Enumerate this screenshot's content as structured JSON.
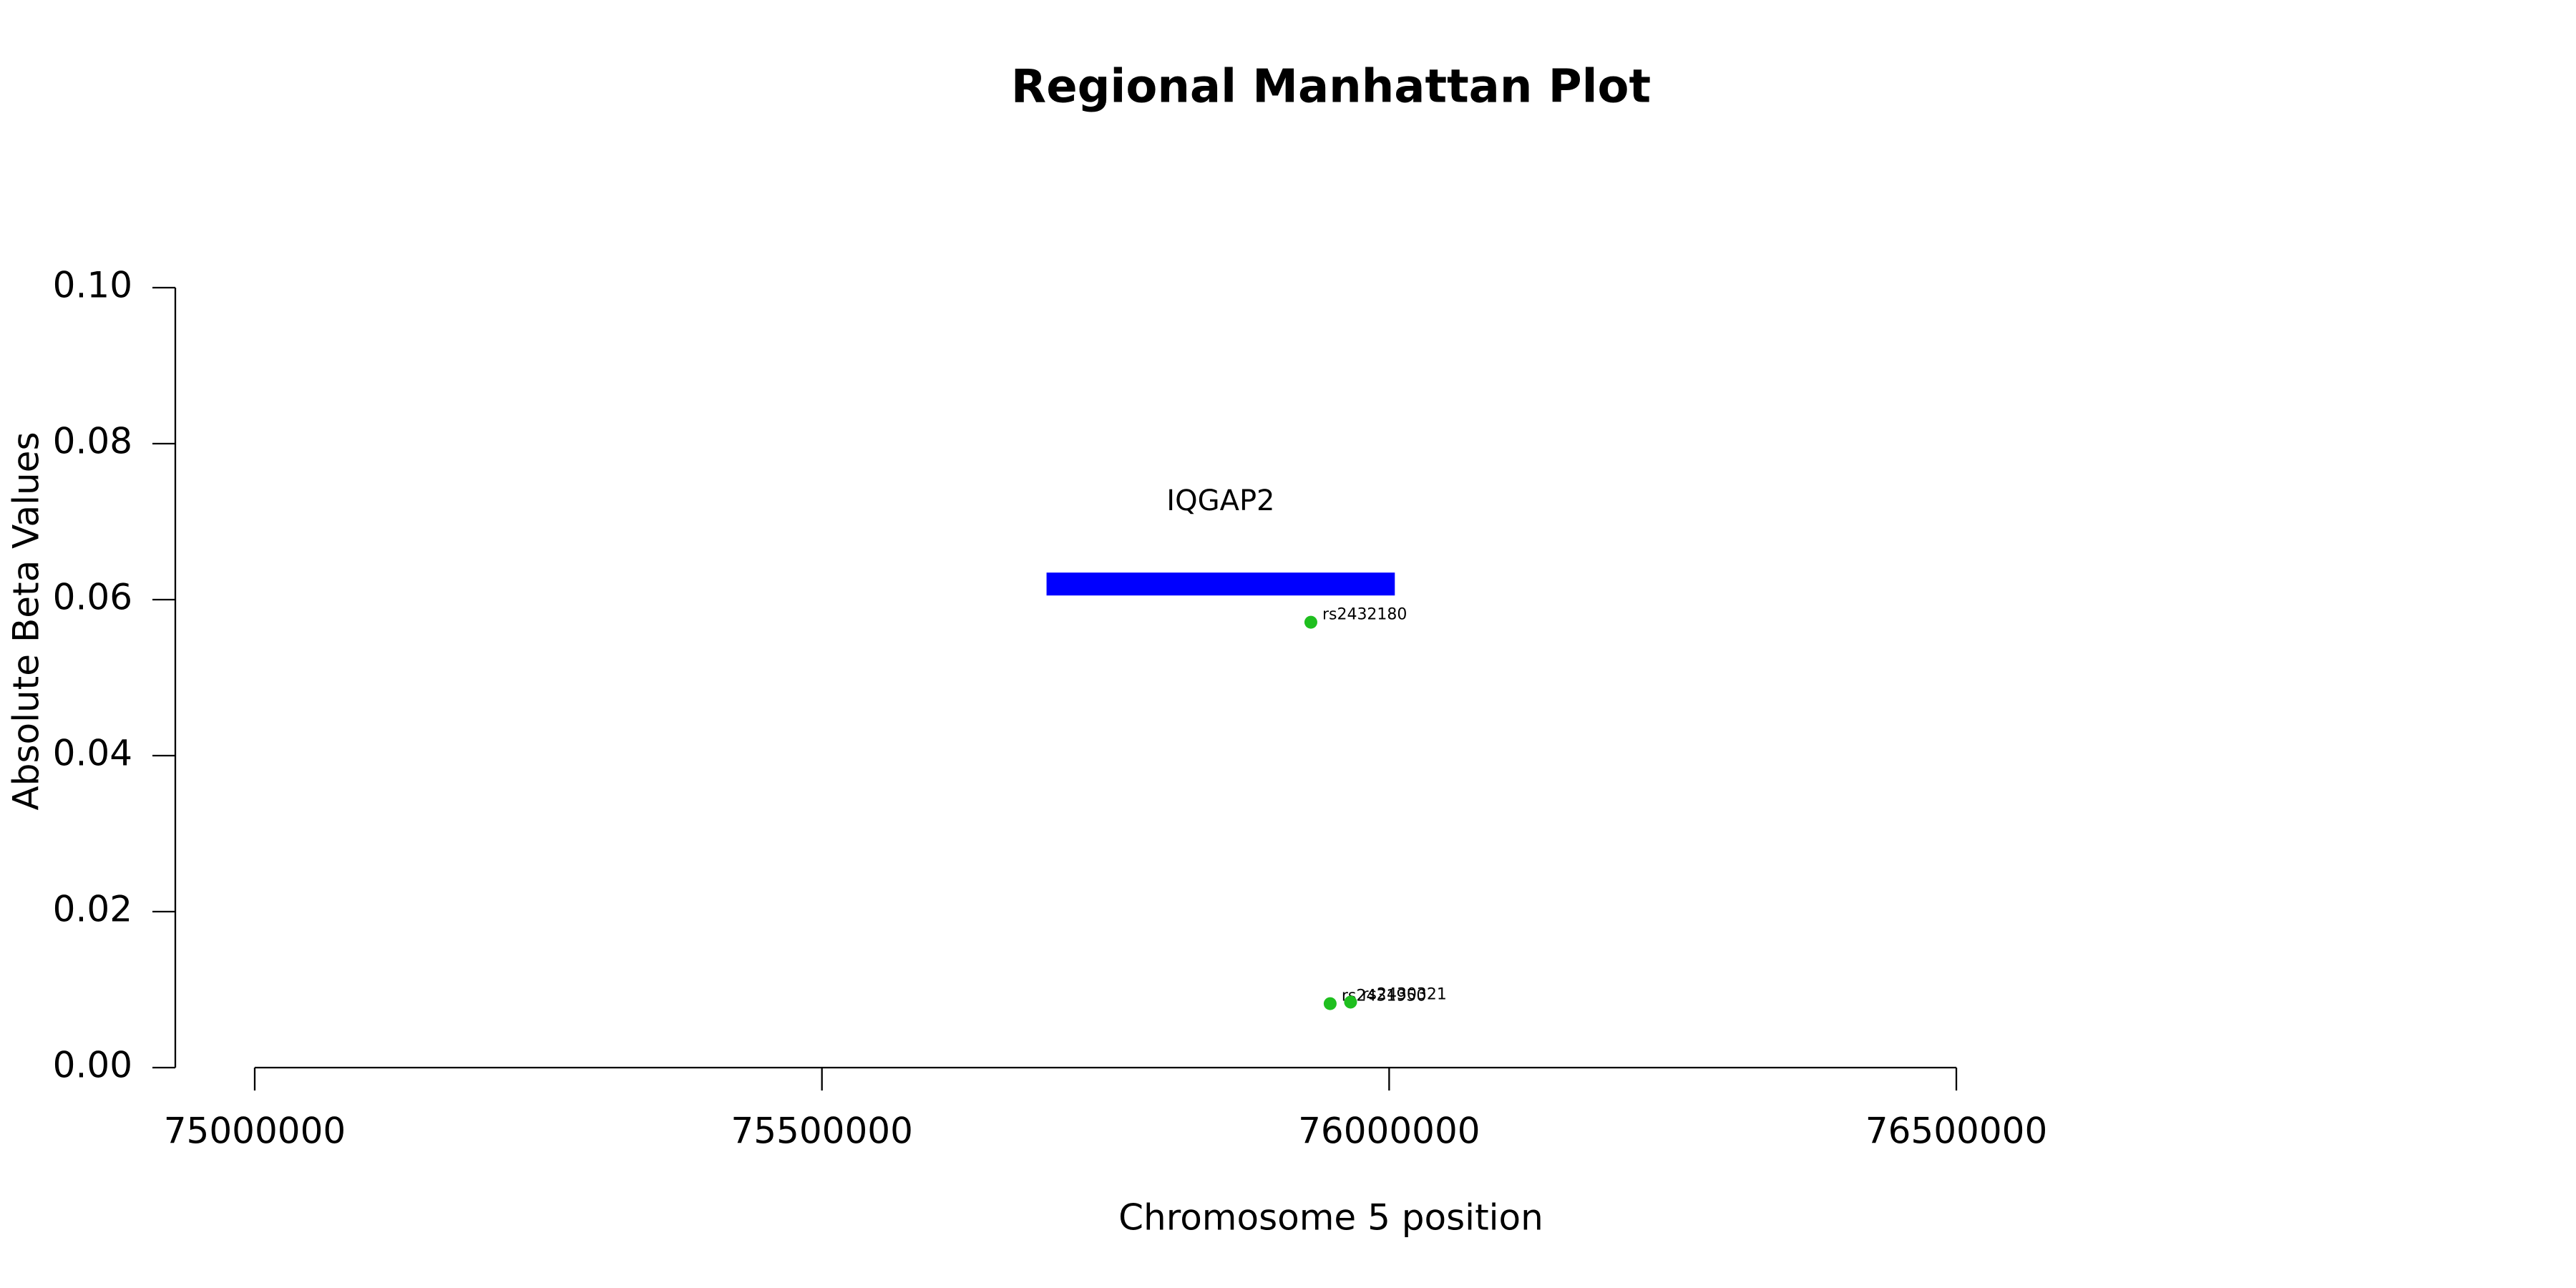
{
  "chart_data": {
    "type": "scatter",
    "title": "Regional Manhattan Plot",
    "xlabel": "Chromosome 5 position",
    "ylabel": "Absolute Beta Values",
    "x": [
      75931000,
      75948000,
      75966000
    ],
    "values": [
      0.0571,
      0.0082,
      0.0084
    ],
    "point_labels": [
      "rs2432180",
      "rs2431950",
      "rs2430321"
    ],
    "color": "#1fbf1f",
    "genes": [
      {
        "label": "IQGAP2",
        "start": 75698000,
        "end": 76005000,
        "y": 0.062,
        "color": "#0000ff"
      }
    ],
    "xlim": [
      74930000,
      76570000
    ],
    "xticks": [
      75000000,
      75500000,
      76000000,
      76500000
    ],
    "ylim": [
      0,
      0.1
    ],
    "yticks": [
      {
        "value": 0,
        "label": "0.00"
      },
      {
        "value": 0.02,
        "label": "0.02"
      },
      {
        "value": 0.04,
        "label": "0.04"
      },
      {
        "value": 0.06,
        "label": "0.06"
      },
      {
        "value": 0.08,
        "label": "0.08"
      },
      {
        "value": 0.1,
        "label": "0.10"
      }
    ]
  }
}
